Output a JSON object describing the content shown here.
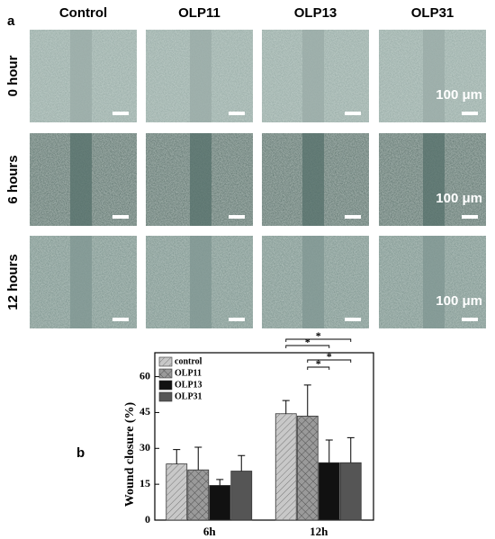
{
  "panel_a": {
    "label": "a",
    "columns": [
      "Control",
      "OLP11",
      "OLP13",
      "OLP31"
    ],
    "rows": [
      "0 hour",
      "6 hours",
      "12 hours"
    ],
    "scale_bar": "100 μm"
  },
  "chart_data": {
    "type": "bar",
    "panel_label": "b",
    "ylabel": "Wound closure (%)",
    "categories": [
      "6h",
      "12h"
    ],
    "series": [
      {
        "name": "control",
        "color": "#c8c8c8",
        "hatch": "diagonal",
        "values": [
          23.5,
          44.5
        ],
        "errors": [
          6,
          5.5
        ]
      },
      {
        "name": "OLP11",
        "color": "#9a9a9a",
        "hatch": "cross",
        "values": [
          21,
          43.5
        ],
        "errors": [
          9.5,
          13
        ]
      },
      {
        "name": "OLP13",
        "color": "#111111",
        "values": [
          14.5,
          24
        ],
        "errors": [
          2.5,
          9.5
        ]
      },
      {
        "name": "OLP31",
        "color": "#555555",
        "values": [
          20.5,
          24
        ],
        "errors": [
          6.5,
          10.5
        ]
      }
    ],
    "ylim": [
      0,
      70
    ],
    "yticks": [
      0,
      15,
      30,
      45,
      60
    ],
    "legend": "upper-left",
    "annotations": [
      "*",
      "*",
      "*",
      "*"
    ]
  }
}
